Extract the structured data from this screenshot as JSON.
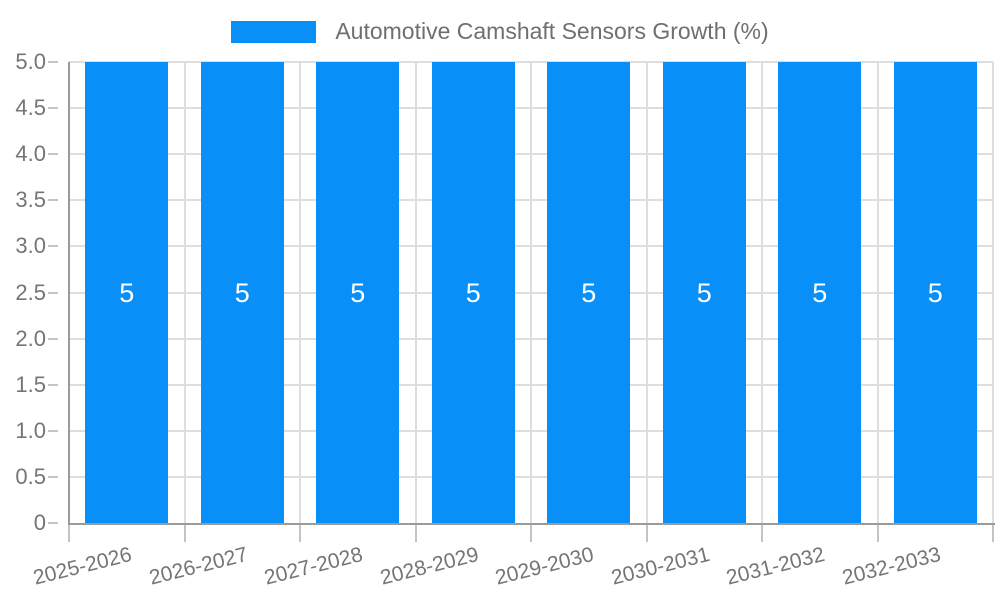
{
  "chart_data": {
    "type": "bar",
    "title": "Automotive Camshaft Sensors Growth (%)",
    "legend": [
      "Automotive Camshaft Sensors Growth (%)"
    ],
    "legend_position": "top-center",
    "categories": [
      "2025-2026",
      "2026-2027",
      "2027-2028",
      "2028-2029",
      "2029-2030",
      "2030-2031",
      "2031-2032",
      "2032-2033"
    ],
    "values": [
      5,
      5,
      5,
      5,
      5,
      5,
      5,
      5
    ],
    "bar_value_labels": [
      "5",
      "5",
      "5",
      "5",
      "5",
      "5",
      "5",
      "5"
    ],
    "xlabel": "",
    "ylabel": "",
    "ylim": [
      0,
      5
    ],
    "ytick_step": 0.5,
    "yticks": [
      "0",
      "0.5",
      "1.0",
      "1.5",
      "2.0",
      "2.5",
      "3.0",
      "3.5",
      "4.0",
      "4.5",
      "5.0"
    ],
    "grid": true,
    "colors": {
      "bar": "#0890f8",
      "grid": "#dedede",
      "axis": "#9a9a9a",
      "tick": "#c4c4c4",
      "axis_label_text": "#757575",
      "legend_text": "#6f6f6f",
      "bar_label_text": "#ffffff",
      "background": "#ffffff"
    }
  }
}
